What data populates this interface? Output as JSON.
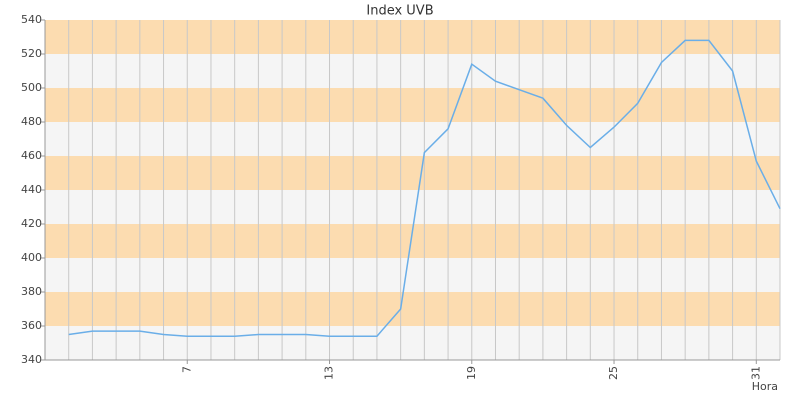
{
  "chart_data": {
    "type": "line",
    "title": "Index UVB",
    "x_label": "Hora",
    "x": [
      2,
      3,
      4,
      5,
      6,
      7,
      8,
      9,
      10,
      11,
      12,
      13,
      14,
      15,
      16,
      17,
      18,
      19,
      20,
      21,
      22,
      23,
      24,
      25,
      26,
      27,
      28,
      29,
      30,
      31,
      32
    ],
    "series": [
      {
        "name": "UVB",
        "color": "#6aaee8",
        "values": [
          355,
          357,
          357,
          357,
          355,
          354,
          354,
          354,
          355,
          355,
          355,
          354,
          354,
          354,
          370,
          462,
          476,
          514,
          504,
          499,
          494,
          478,
          465,
          477,
          491,
          515,
          528,
          528,
          510,
          457,
          429
        ]
      }
    ],
    "xlim": [
      1,
      32
    ],
    "xticks": [
      7,
      13,
      19,
      25,
      31
    ],
    "ylim": [
      340,
      540
    ],
    "yticks": [
      340,
      360,
      380,
      400,
      420,
      440,
      460,
      480,
      500,
      520,
      540
    ],
    "band_colors": [
      "#f5f5f5",
      "#fcdcb0"
    ],
    "grid": true
  }
}
